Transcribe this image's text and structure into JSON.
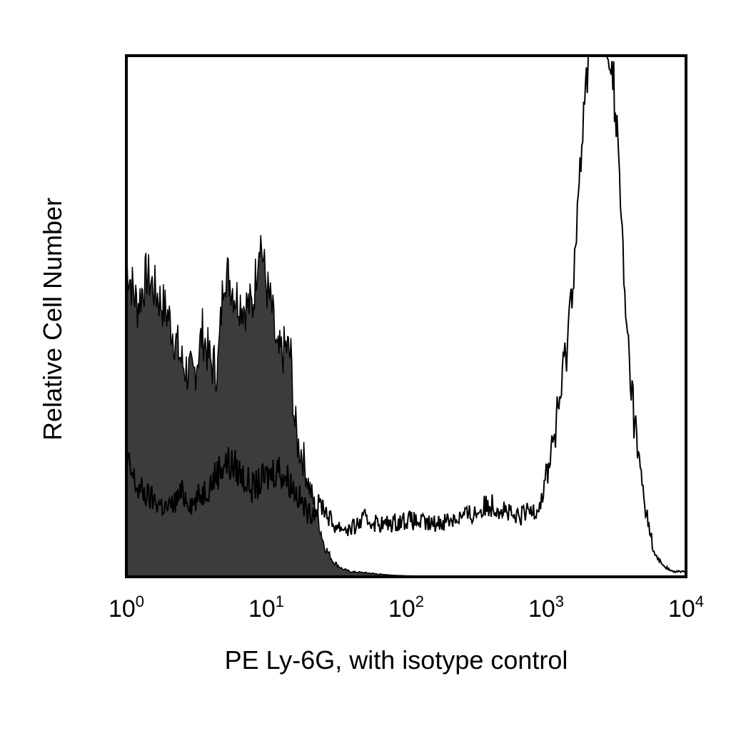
{
  "chart_data": {
    "type": "area",
    "xlabel": "PE Ly-6G, with isotype control",
    "ylabel": "Relative Cell Number",
    "x_scale": "log",
    "xlim": [
      1,
      10000
    ],
    "ylim": [
      0,
      100
    ],
    "tick_labels": [
      {
        "base": "10",
        "exp": "0",
        "value": 1
      },
      {
        "base": "10",
        "exp": "1",
        "value": 10
      },
      {
        "base": "10",
        "exp": "2",
        "value": 100
      },
      {
        "base": "10",
        "exp": "3",
        "value": 1000
      },
      {
        "base": "10",
        "exp": "4",
        "value": 10000
      }
    ],
    "grid": false,
    "legend": "none",
    "series": [
      {
        "style": "filled",
        "color": "#3c3c3c",
        "x": [
          1.0,
          1.2,
          1.4,
          1.6,
          2.0,
          2.5,
          3.0,
          3.5,
          4.0,
          4.5,
          5.0,
          5.5,
          6.0,
          7.0,
          8.0,
          9.0,
          10.0,
          11.0,
          12.0,
          13.0,
          14.0,
          15.0,
          16.0,
          17.0,
          18.0,
          20.0,
          23.0,
          26.0,
          30.0,
          35.0,
          40.0,
          50.0,
          60.0,
          80.0,
          100.0,
          200.0,
          1000.0,
          10000.0
        ],
        "y": [
          60,
          52,
          58,
          55,
          50,
          41,
          38,
          47,
          41,
          40,
          59,
          57,
          54,
          52,
          52,
          66,
          56,
          51,
          42,
          43,
          44,
          42,
          29,
          25,
          24,
          18,
          12,
          6,
          3,
          1.5,
          1.0,
          0.8,
          0.6,
          0.3,
          0.2,
          0.1,
          0,
          0
        ]
      },
      {
        "style": "outline",
        "color": "#000000",
        "x": [
          1.0,
          1.2,
          1.5,
          2.0,
          2.5,
          3.0,
          4.0,
          5.0,
          6.0,
          8.0,
          10.0,
          12.0,
          15.0,
          20.0,
          25.0,
          30.0,
          40.0,
          50.0,
          70.0,
          100.0,
          150.0,
          200.0,
          300.0,
          400.0,
          500.0,
          600.0,
          700.0,
          800.0,
          900.0,
          1000.0,
          1100.0,
          1200.0,
          1400.0,
          1600.0,
          1800.0,
          2000.0,
          2200.0,
          2400.0,
          2700.0,
          3000.0,
          3300.0,
          3700.0,
          4000.0,
          4500.0,
          5000.0,
          5500.0,
          6000.0,
          7000.0,
          8000.0,
          9000.0,
          10000.0
        ],
        "y": [
          22,
          17,
          15,
          13,
          16,
          14,
          18,
          22,
          21,
          17,
          19,
          21,
          18,
          12,
          14,
          10,
          9,
          11,
          10,
          11,
          10,
          11,
          12,
          14,
          13,
          11,
          12,
          13,
          14,
          19,
          25,
          30,
          44,
          62,
          82,
          100,
          100,
          100,
          100,
          97,
          80,
          50,
          39,
          24,
          15,
          9,
          4,
          2,
          1,
          1,
          1
        ]
      }
    ]
  }
}
